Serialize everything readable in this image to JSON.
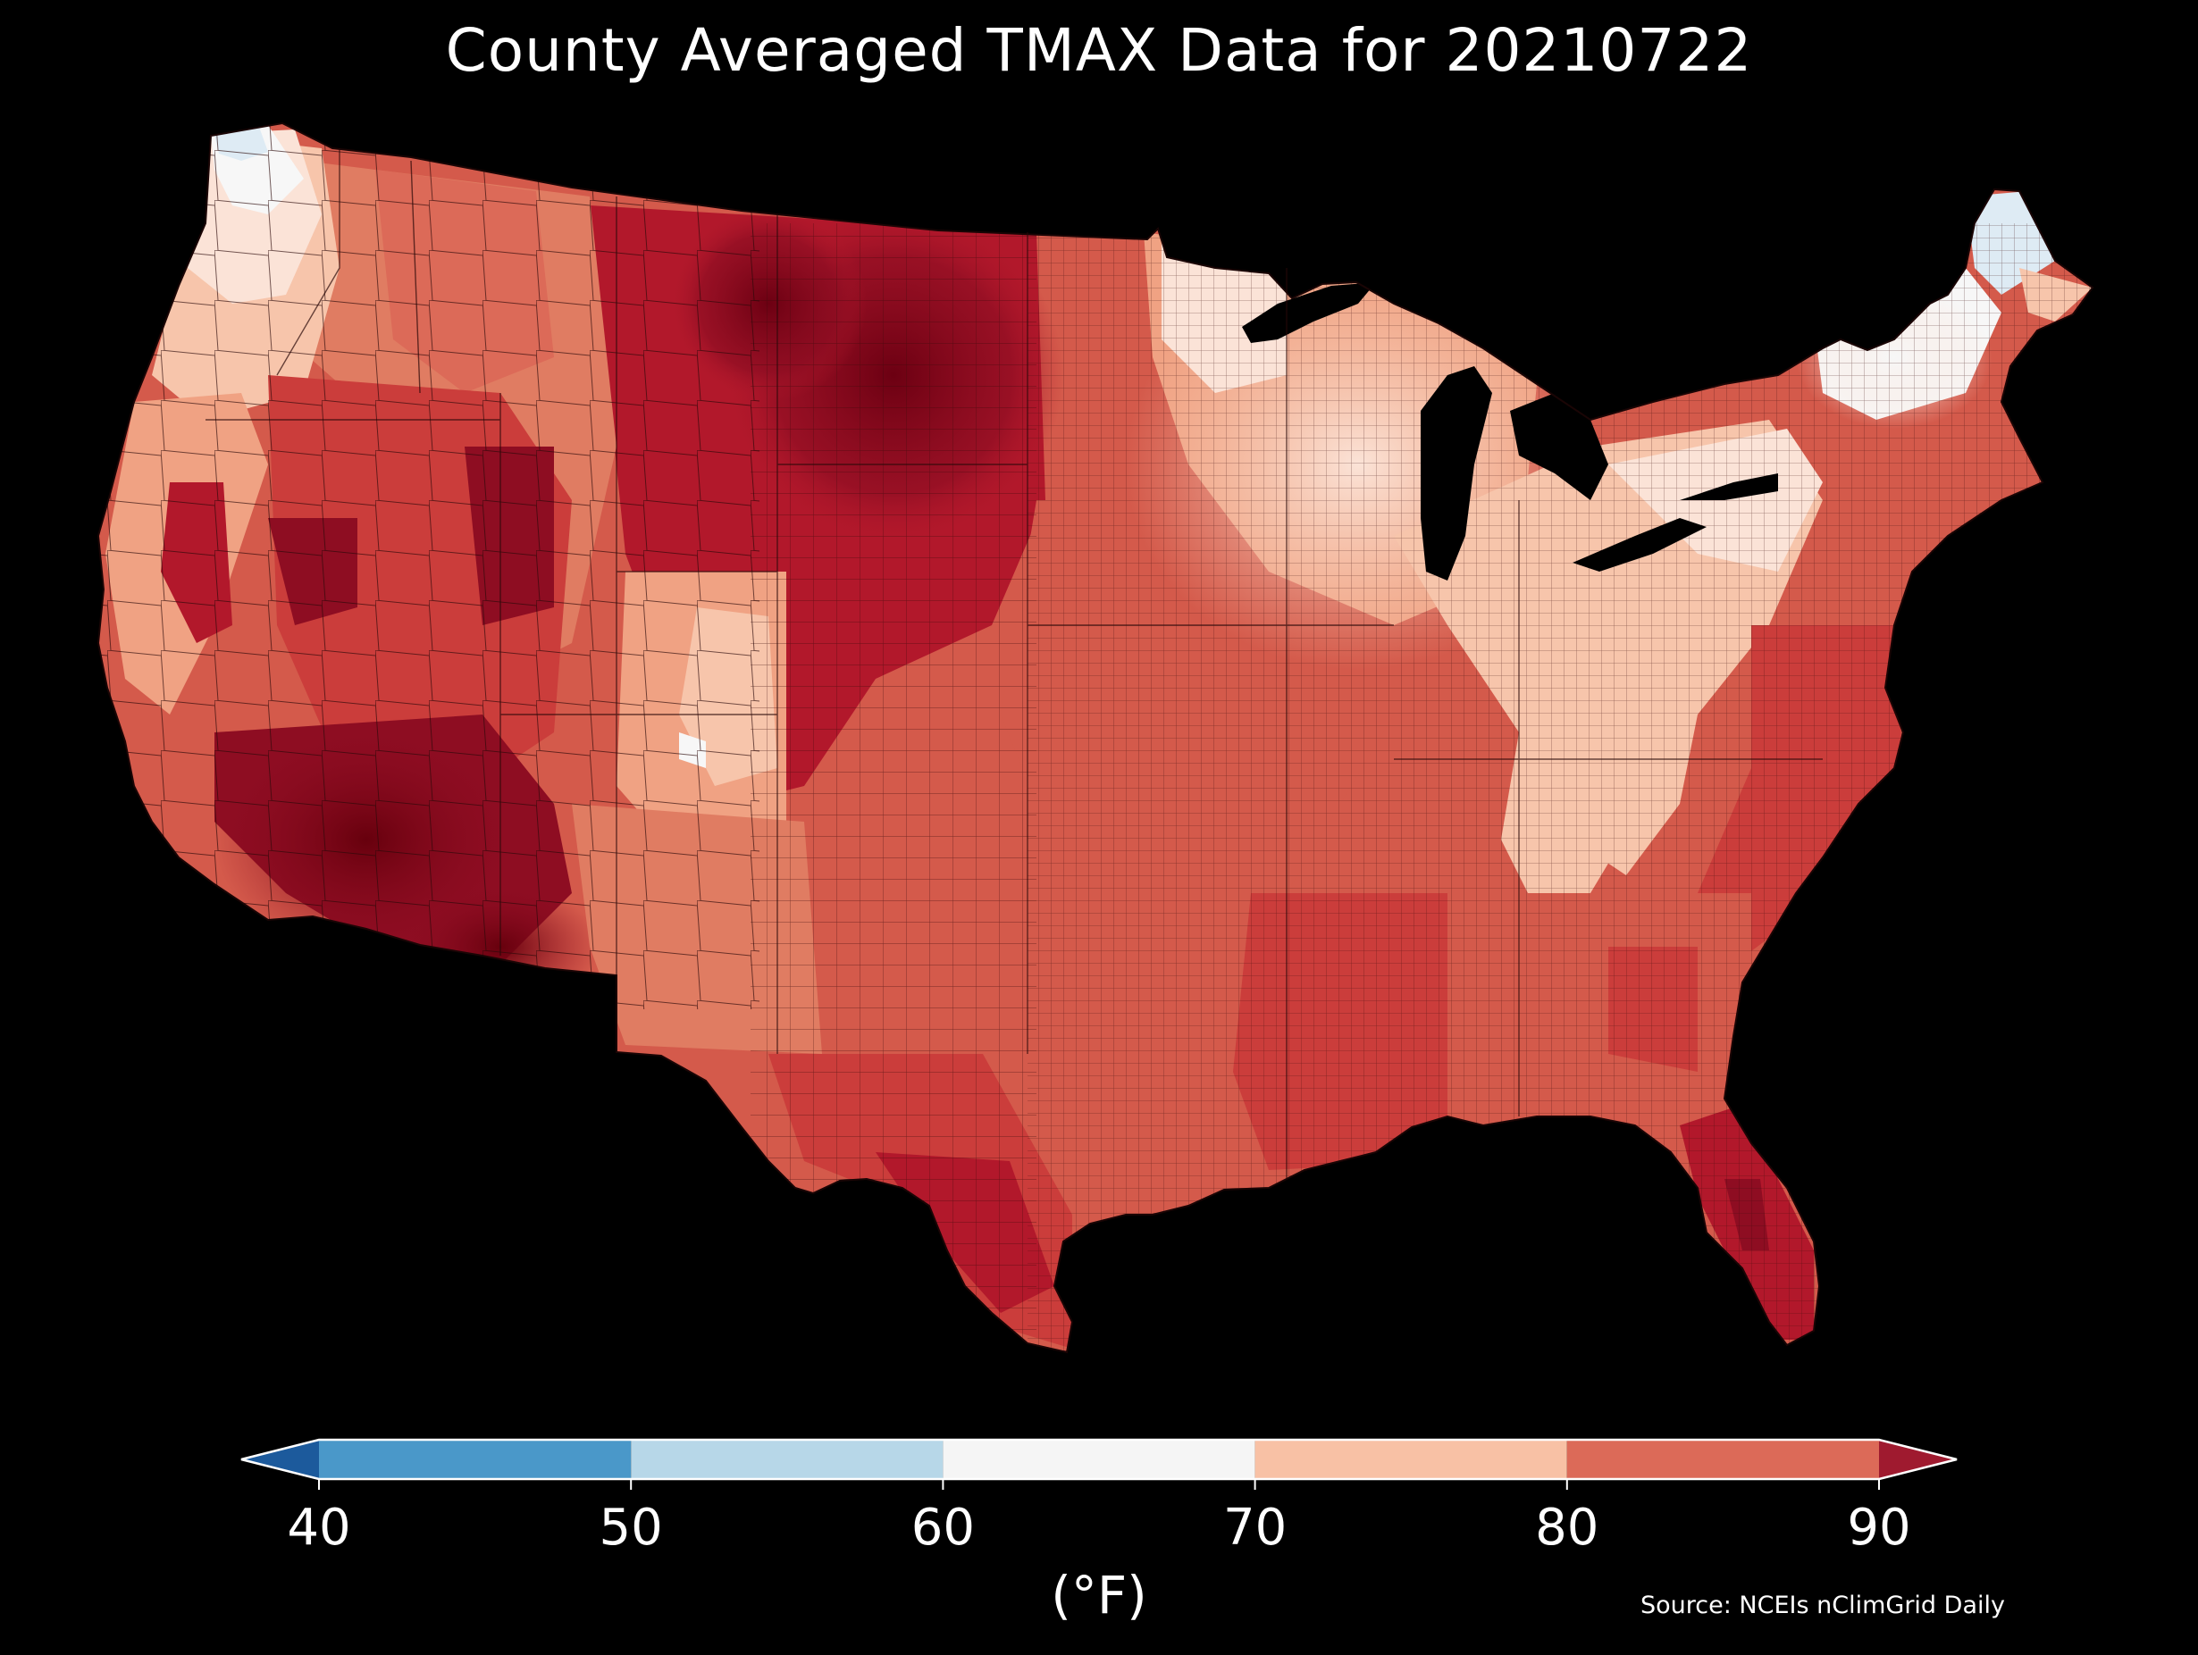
{
  "title": "County Averaged TMAX Data for 20210722",
  "colorbar": {
    "unit_label": "(°F)",
    "ticks": [
      "40",
      "50",
      "60",
      "70",
      "80",
      "90"
    ],
    "bins": [
      {
        "range": [
          30,
          40
        ],
        "color": "#1c5a9c"
      },
      {
        "range": [
          40,
          50
        ],
        "color": "#4a98c9"
      },
      {
        "range": [
          50,
          60
        ],
        "color": "#b7d7e8"
      },
      {
        "range": [
          60,
          70
        ],
        "color": "#f5f5f5"
      },
      {
        "range": [
          70,
          80
        ],
        "color": "#f8c1a5"
      },
      {
        "range": [
          80,
          90
        ],
        "color": "#dc6a58"
      },
      {
        "range": [
          90,
          100
        ],
        "color": "#9f1a2f"
      }
    ],
    "extend": "both"
  },
  "source": "Source: NCEIs nClimGrid Daily",
  "map": {
    "region": "Contiguous United States",
    "variable": "TMAX",
    "palette": {
      "darkest": "#67000d",
      "dark": "#8e0d22",
      "deep_red": "#b2182b",
      "red": "#cb3d3b",
      "red_orange": "#d45a4b",
      "salmon": "#e07c62",
      "light_salmon": "#f0a283",
      "peach": "#f7c5ab",
      "pale": "#fbe3d7",
      "white": "#f7f7f7",
      "light_blue": "#deebf4",
      "lake": "#000000"
    }
  }
}
